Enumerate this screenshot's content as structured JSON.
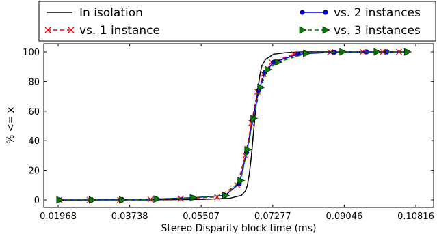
{
  "chart_data": {
    "type": "line",
    "title": "",
    "xlabel": "Stereo Disparity block time (ms)",
    "ylabel": "% <= x",
    "xlim": [
      0.01968,
      0.10816
    ],
    "ylim": [
      -5,
      103
    ],
    "x_ticks": [
      0.01968,
      0.03738,
      0.05507,
      0.07277,
      0.09046,
      0.10816
    ],
    "x_tick_labels": [
      "0.01968",
      "0.03738",
      "0.05507",
      "0.07277",
      "0.09046",
      "0.10816"
    ],
    "y_ticks": [
      0,
      20,
      40,
      60,
      80,
      100
    ],
    "y_tick_labels": [
      "0",
      "20",
      "40",
      "60",
      "80",
      "100"
    ],
    "legend_position": "top",
    "series": [
      {
        "name": "In isolation",
        "color": "#000000",
        "line_style": "solid",
        "marker": "none",
        "x": [
          0.02,
          0.04,
          0.055,
          0.062,
          0.065,
          0.066,
          0.0665,
          0.067,
          0.0675,
          0.068,
          0.0685,
          0.069,
          0.0695,
          0.07,
          0.071,
          0.073,
          0.076,
          0.08,
          0.09,
          0.106
        ],
        "y": [
          0,
          0,
          0.3,
          1,
          3,
          6,
          10,
          18,
          30,
          45,
          60,
          73,
          83,
          90,
          95,
          98.5,
          99.5,
          100,
          100,
          100
        ]
      },
      {
        "name": "vs. 1 instance",
        "color": "#ff0000",
        "line_style": "dashed",
        "marker": "x",
        "x": [
          0.02,
          0.0275,
          0.035,
          0.0425,
          0.05,
          0.059,
          0.064,
          0.066,
          0.0675,
          0.069,
          0.0705,
          0.0725,
          0.078,
          0.087,
          0.095,
          0.1,
          0.104
        ],
        "y": [
          0,
          0,
          0,
          0.3,
          0.8,
          2,
          10,
          30,
          52,
          73,
          85,
          93,
          98.5,
          99.8,
          100,
          100,
          100
        ]
      },
      {
        "name": "vs. 2 instances",
        "color": "#0000ff",
        "line_style": "solid",
        "marker": "circle",
        "x": [
          0.02,
          0.028,
          0.0355,
          0.044,
          0.053,
          0.061,
          0.0645,
          0.0663,
          0.0678,
          0.0693,
          0.0708,
          0.073,
          0.079,
          0.088,
          0.096,
          0.101,
          0.106
        ],
        "y": [
          0,
          0,
          0.2,
          0.6,
          1.5,
          3,
          11,
          32,
          54,
          74,
          86,
          93,
          98.5,
          99.8,
          100,
          100,
          100
        ]
      },
      {
        "name": "vs. 3 instances",
        "color": "#008000",
        "line_style": "dashed",
        "marker": "triangle-right",
        "x": [
          0.02,
          0.028,
          0.0355,
          0.044,
          0.053,
          0.061,
          0.0648,
          0.0665,
          0.068,
          0.0697,
          0.0715,
          0.074,
          0.081,
          0.09,
          0.0985,
          0.106
        ],
        "y": [
          0,
          0,
          0,
          0.6,
          1.5,
          3,
          13,
          34,
          55,
          76,
          88,
          93,
          99,
          100,
          100,
          100
        ]
      }
    ]
  }
}
